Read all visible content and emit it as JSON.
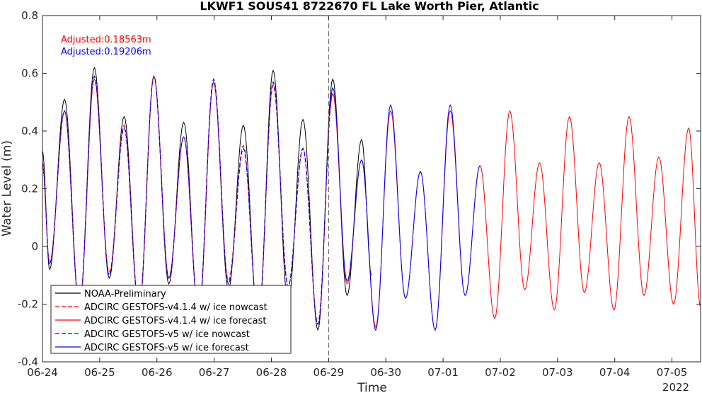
{
  "chart_data": {
    "type": "line",
    "title": "LKWF1 SOUS41 8722670 FL Lake Worth Pier, Atlantic",
    "xlabel": "Time",
    "ylabel": "Water Level (m)",
    "year_label": "2022",
    "xlim": [
      "2022-06-24 00:00",
      "2022-07-05 12:00"
    ],
    "ylim": [
      -0.4,
      0.8
    ],
    "y_ticks": [
      -0.4,
      -0.2,
      0,
      0.2,
      0.4,
      0.6,
      0.8
    ],
    "y_tick_labels": [
      "-0.4",
      "-0.2",
      "0",
      "0.2",
      "0.4",
      "0.6",
      "0.8"
    ],
    "x_ticks": [
      "06-24",
      "06-25",
      "06-26",
      "06-27",
      "06-28",
      "06-29",
      "06-30",
      "07-01",
      "07-02",
      "07-03",
      "07-04",
      "07-05"
    ],
    "grid": false,
    "legend_position": "bottom-left",
    "vertical_line": {
      "x": "2022-06-29 00:00",
      "style": "dashed",
      "color": "#555555"
    },
    "annotations": [
      {
        "text": "Adjusted:0.18563m",
        "color": "#ff0000"
      },
      {
        "text": "Adjusted:0.19206m",
        "color": "#0000ff"
      }
    ],
    "series": [
      {
        "name": "NOAA-Preliminary",
        "color": "#000000",
        "style": "solid",
        "extrema": [
          [
            "06-24 00:00",
            0.33
          ],
          [
            "06-24 03:00",
            -0.08
          ],
          [
            "06-24 09:15",
            0.51
          ],
          [
            "06-24 15:30",
            -0.21
          ],
          [
            "06-24 21:45",
            0.62
          ],
          [
            "06-25 04:00",
            -0.11
          ],
          [
            "06-25 10:15",
            0.45
          ],
          [
            "06-25 16:30",
            -0.22
          ],
          [
            "06-25 22:45",
            0.59
          ],
          [
            "06-26 05:00",
            -0.13
          ],
          [
            "06-26 11:15",
            0.43
          ],
          [
            "06-26 17:30",
            -0.24
          ],
          [
            "06-26 23:45",
            0.57
          ],
          [
            "06-27 06:00",
            -0.15
          ],
          [
            "06-27 12:15",
            0.42
          ],
          [
            "06-27 18:30",
            -0.27
          ],
          [
            "06-28 00:45",
            0.61
          ],
          [
            "06-28 07:00",
            -0.2
          ],
          [
            "06-28 13:15",
            0.44
          ],
          [
            "06-28 19:30",
            -0.29
          ],
          [
            "06-29 01:45",
            0.58
          ],
          [
            "06-29 07:45",
            -0.17
          ],
          [
            "06-29 13:50",
            0.37
          ],
          [
            "06-29 18:00",
            -0.1
          ]
        ]
      },
      {
        "name": "ADCIRC GESTOFS-v4.1.4 w/ ice nowcast",
        "color": "#ff0000",
        "style": "dashed",
        "extrema": [
          [
            "06-24 00:00",
            0.28
          ],
          [
            "06-24 03:00",
            -0.06
          ],
          [
            "06-24 09:15",
            0.47
          ],
          [
            "06-24 15:30",
            -0.21
          ],
          [
            "06-24 21:45",
            0.58
          ],
          [
            "06-25 04:00",
            -0.09
          ],
          [
            "06-25 10:15",
            0.42
          ],
          [
            "06-25 16:30",
            -0.22
          ],
          [
            "06-25 22:45",
            0.59
          ],
          [
            "06-26 05:00",
            -0.11
          ],
          [
            "06-26 11:15",
            0.38
          ],
          [
            "06-26 17:30",
            -0.23
          ],
          [
            "06-26 23:45",
            0.57
          ],
          [
            "06-27 06:00",
            -0.12
          ],
          [
            "06-27 12:15",
            0.35
          ],
          [
            "06-27 18:30",
            -0.25
          ],
          [
            "06-28 00:45",
            0.56
          ],
          [
            "06-28 07:00",
            -0.14
          ],
          [
            "06-28 13:15",
            0.34
          ],
          [
            "06-28 19:30",
            -0.27
          ],
          [
            "06-29 01:45",
            0.53
          ]
        ]
      },
      {
        "name": "ADCIRC GESTOFS-v4.1.4 w/ ice forecast",
        "color": "#ff0000",
        "style": "solid",
        "extrema": [
          [
            "06-29 00:00",
            0.45
          ],
          [
            "06-29 01:45",
            0.53
          ],
          [
            "06-29 07:45",
            -0.13
          ],
          [
            "06-29 13:50",
            0.3
          ],
          [
            "06-29 19:45",
            -0.28
          ],
          [
            "06-30 02:00",
            0.47
          ],
          [
            "06-30 08:15",
            -0.18
          ],
          [
            "06-30 14:30",
            0.26
          ],
          [
            "06-30 20:40",
            -0.29
          ],
          [
            "07-01 03:00",
            0.47
          ],
          [
            "07-01 09:15",
            -0.17
          ],
          [
            "07-01 15:30",
            0.28
          ],
          [
            "07-01 21:40",
            -0.25
          ],
          [
            "07-02 04:00",
            0.47
          ],
          [
            "07-02 10:15",
            -0.15
          ],
          [
            "07-02 16:30",
            0.29
          ],
          [
            "07-02 22:40",
            -0.22
          ],
          [
            "07-03 05:00",
            0.45
          ],
          [
            "07-03 11:15",
            -0.16
          ],
          [
            "07-03 17:30",
            0.29
          ],
          [
            "07-03 23:40",
            -0.22
          ],
          [
            "07-04 06:00",
            0.45
          ],
          [
            "07-04 12:15",
            -0.17
          ],
          [
            "07-04 18:30",
            0.31
          ],
          [
            "07-05 00:40",
            -0.2
          ],
          [
            "07-05 07:00",
            0.41
          ],
          [
            "07-05 12:00",
            -0.21
          ]
        ]
      },
      {
        "name": "ADCIRC GESTOFS-v5 w/ ice nowcast",
        "color": "#0000ff",
        "style": "dashed",
        "extrema": [
          [
            "06-24 00:00",
            0.29
          ],
          [
            "06-24 03:00",
            -0.06
          ],
          [
            "06-24 09:15",
            0.47
          ],
          [
            "06-24 15:30",
            -0.21
          ],
          [
            "06-24 21:45",
            0.59
          ],
          [
            "06-25 04:00",
            -0.1
          ],
          [
            "06-25 10:15",
            0.41
          ],
          [
            "06-25 16:30",
            -0.22
          ],
          [
            "06-25 22:45",
            0.59
          ],
          [
            "06-26 05:00",
            -0.11
          ],
          [
            "06-26 11:15",
            0.38
          ],
          [
            "06-26 17:30",
            -0.23
          ],
          [
            "06-26 23:45",
            0.58
          ],
          [
            "06-27 06:00",
            -0.13
          ],
          [
            "06-27 12:15",
            0.34
          ],
          [
            "06-27 18:30",
            -0.25
          ],
          [
            "06-28 00:45",
            0.57
          ],
          [
            "06-28 07:00",
            -0.14
          ],
          [
            "06-28 13:15",
            0.34
          ],
          [
            "06-28 19:30",
            -0.27
          ],
          [
            "06-29 01:45",
            0.55
          ]
        ]
      },
      {
        "name": "ADCIRC GESTOFS-v5 w/ ice forecast",
        "color": "#0000ff",
        "style": "solid",
        "extrema": [
          [
            "06-29 00:00",
            0.46
          ],
          [
            "06-29 01:45",
            0.55
          ],
          [
            "06-29 07:45",
            -0.12
          ],
          [
            "06-29 13:50",
            0.3
          ],
          [
            "06-29 19:45",
            -0.29
          ],
          [
            "06-30 02:00",
            0.49
          ],
          [
            "06-30 08:15",
            -0.18
          ],
          [
            "06-30 14:30",
            0.26
          ],
          [
            "06-30 20:40",
            -0.29
          ],
          [
            "07-01 03:00",
            0.49
          ],
          [
            "07-01 09:15",
            -0.17
          ],
          [
            "07-01 15:30",
            0.28
          ]
        ]
      }
    ]
  }
}
